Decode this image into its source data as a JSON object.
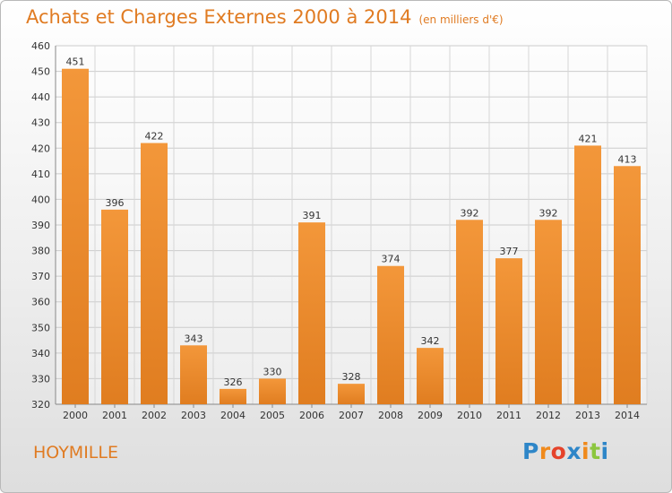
{
  "title": "Achats et Charges Externes 2000 à 2014",
  "subtitle": "(en milliers d'€)",
  "place": "HOYMILLE",
  "logo": {
    "text": "Proxiti",
    "colors": [
      "#2e86c8",
      "#f08a1c",
      "#e5432b",
      "#2e86c8",
      "#f08a1c",
      "#8cc63f",
      "#2e86c8"
    ]
  },
  "colors": {
    "bar": "#f3973a",
    "bar_dark": "#e07d20",
    "accent": "#e07b22"
  },
  "chart_data": {
    "type": "bar",
    "title": "Achats et Charges Externes 2000 à 2014",
    "subtitle": "(en milliers d'€)",
    "categories": [
      "2000",
      "2001",
      "2002",
      "2003",
      "2004",
      "2005",
      "2006",
      "2007",
      "2008",
      "2009",
      "2010",
      "2011",
      "2012",
      "2013",
      "2014"
    ],
    "values": [
      451,
      396,
      422,
      343,
      326,
      330,
      391,
      328,
      374,
      342,
      392,
      377,
      392,
      421,
      413
    ],
    "ylim": [
      320,
      460
    ],
    "yticks": [
      320,
      330,
      340,
      350,
      360,
      370,
      380,
      390,
      400,
      410,
      420,
      430,
      440,
      450,
      460
    ],
    "grid": true,
    "xlabel": "",
    "ylabel": ""
  }
}
